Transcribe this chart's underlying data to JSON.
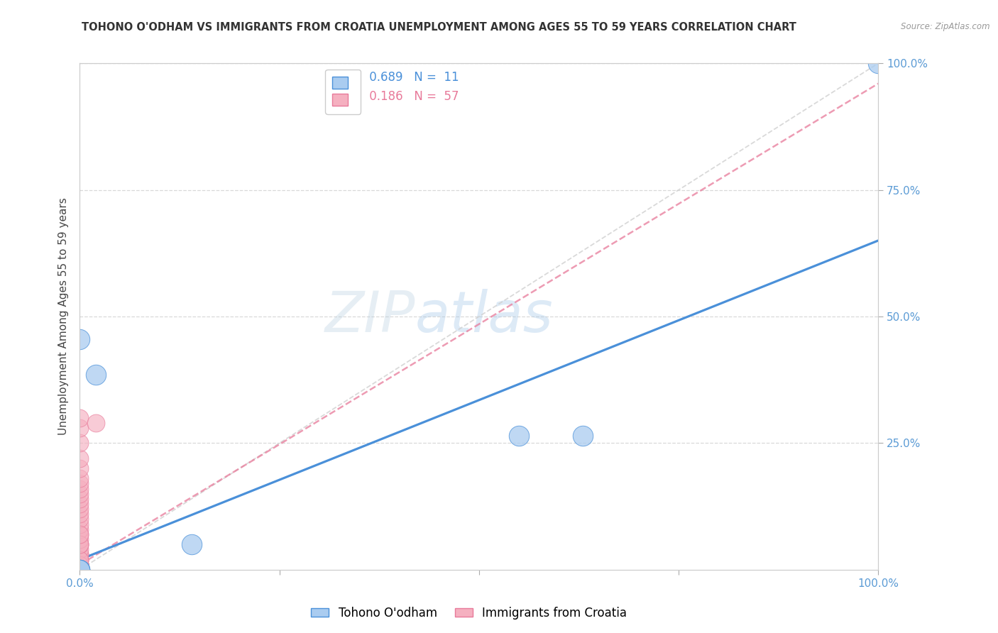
{
  "title": "TOHONO O'ODHAM VS IMMIGRANTS FROM CROATIA UNEMPLOYMENT AMONG AGES 55 TO 59 YEARS CORRELATION CHART",
  "source": "Source: ZipAtlas.com",
  "ylabel_label": "Unemployment Among Ages 55 to 59 years",
  "blue_R": 0.689,
  "blue_N": 11,
  "pink_R": 0.186,
  "pink_N": 57,
  "blue_scatter_x": [
    0.0,
    0.02,
    0.14,
    0.55,
    0.63,
    0.0,
    1.0,
    0.0,
    0.0,
    0.0,
    0.0
  ],
  "blue_scatter_y": [
    0.455,
    0.385,
    0.05,
    0.265,
    0.265,
    0.0,
    1.0,
    0.0,
    0.0,
    0.0,
    0.0
  ],
  "pink_scatter_x": [
    0.0,
    0.0,
    0.0,
    0.0,
    0.0,
    0.0,
    0.0,
    0.0,
    0.0,
    0.0,
    0.0,
    0.0,
    0.0,
    0.0,
    0.0,
    0.0,
    0.0,
    0.0,
    0.0,
    0.0,
    0.0,
    0.0,
    0.0,
    0.0,
    0.0,
    0.0,
    0.0,
    0.0,
    0.0,
    0.0,
    0.0,
    0.0,
    0.0,
    0.0,
    0.0,
    0.0,
    0.0,
    0.0,
    0.0,
    0.0,
    0.0,
    0.0,
    0.0,
    0.0,
    0.0,
    0.0,
    0.0,
    0.0,
    0.0,
    0.0,
    0.0,
    0.0,
    0.0,
    0.0,
    0.0,
    0.0,
    0.02
  ],
  "pink_scatter_y": [
    0.0,
    0.0,
    0.0,
    0.0,
    0.0,
    0.0,
    0.0,
    0.0,
    0.0,
    0.0,
    0.0,
    0.0,
    0.0,
    0.0,
    0.0,
    0.0,
    0.0,
    0.0,
    0.0,
    0.0,
    0.01,
    0.01,
    0.01,
    0.02,
    0.02,
    0.03,
    0.03,
    0.04,
    0.05,
    0.05,
    0.06,
    0.07,
    0.08,
    0.09,
    0.1,
    0.11,
    0.12,
    0.13,
    0.14,
    0.15,
    0.16,
    0.17,
    0.18,
    0.2,
    0.22,
    0.25,
    0.28,
    0.3,
    0.0,
    0.0,
    0.0,
    0.0,
    0.01,
    0.02,
    0.05,
    0.07,
    0.29
  ],
  "blue_line_intercept": 0.02,
  "blue_line_slope": 0.63,
  "pink_line_intercept": 0.01,
  "pink_line_slope": 0.95,
  "diag_color": "#d0d0d0",
  "blue_line_color": "#4a90d9",
  "pink_line_color": "#e87a9a",
  "blue_dot_color": "#aaccf0",
  "pink_dot_color": "#f5b0c0",
  "axis_color": "#5b9bd5",
  "grid_color": "#d8d8d8",
  "bg_color": "#ffffff",
  "title_fontsize": 10.5,
  "tick_fontsize": 11,
  "ylabel_fontsize": 11
}
